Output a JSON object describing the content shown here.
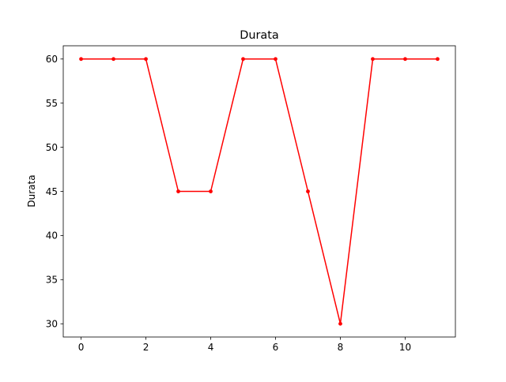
{
  "chart_data": {
    "type": "line",
    "title": "Durata",
    "xlabel": "",
    "ylabel": "Durata",
    "x": [
      0,
      1,
      2,
      3,
      4,
      5,
      6,
      7,
      8,
      9,
      10,
      11
    ],
    "series": [
      {
        "values": [
          60,
          60,
          60,
          45,
          45,
          60,
          60,
          45,
          30,
          60,
          60,
          60
        ],
        "color": "#ff0000",
        "marker": "point"
      }
    ],
    "xlim": [
      -0.55,
      11.55
    ],
    "ylim": [
      28.5,
      61.5
    ],
    "xticks": [
      0,
      2,
      4,
      6,
      8,
      10
    ],
    "yticks": [
      30,
      35,
      40,
      45,
      50,
      55,
      60
    ],
    "xtick_labels": [
      "0",
      "2",
      "4",
      "6",
      "8",
      "10"
    ],
    "ytick_labels": [
      "30",
      "35",
      "40",
      "45",
      "50",
      "55",
      "60"
    ],
    "grid": false,
    "legend": "none"
  }
}
